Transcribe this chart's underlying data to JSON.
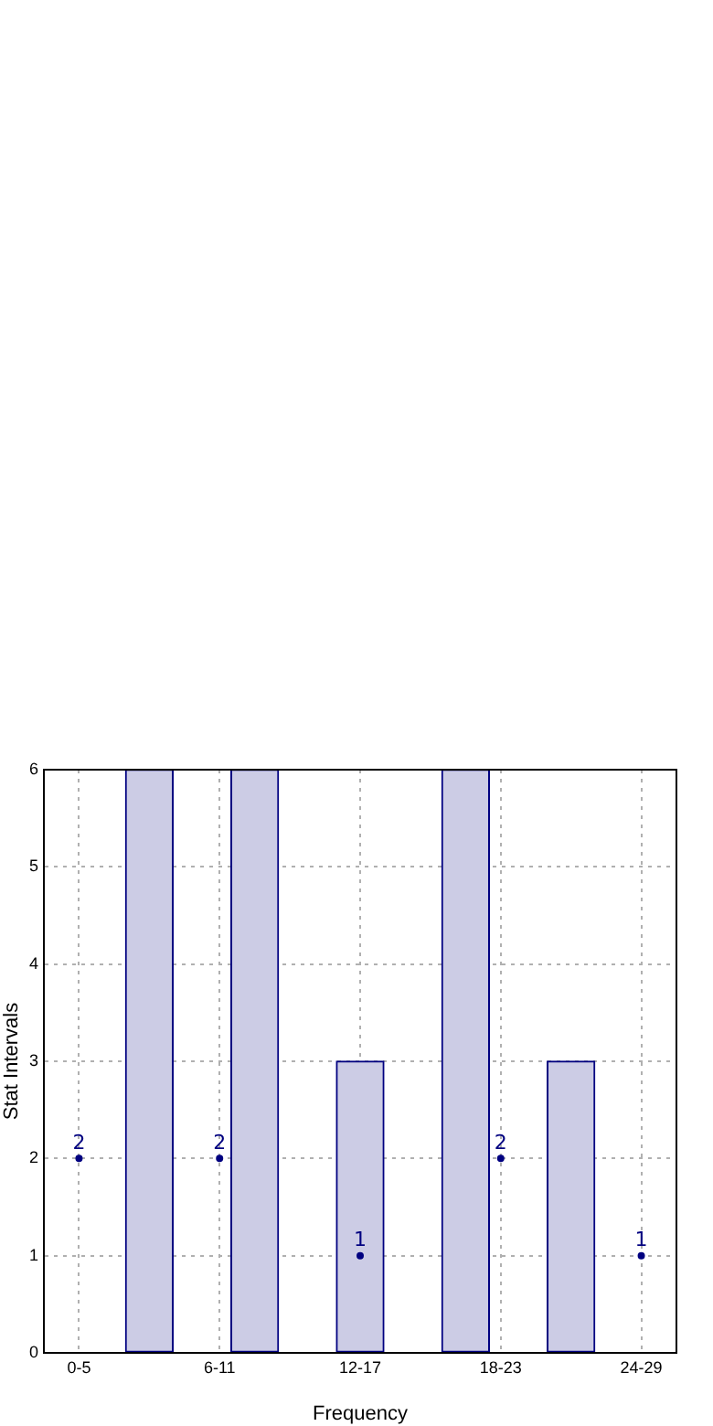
{
  "chart_data": {
    "type": "bar",
    "xlabel": "Frequency",
    "ylabel": "Stat Intervals",
    "categories": [
      null,
      "0-5",
      null,
      null,
      null,
      "6-11",
      null,
      null,
      null,
      "12-17",
      null,
      null,
      null,
      "18-23",
      null,
      null,
      null,
      "24-29",
      null
    ],
    "series": [
      {
        "color": "#ccccE5",
        "values": [
          null,
          null,
          null,
          6,
          null,
          null,
          6,
          null,
          null,
          3,
          null,
          null,
          6,
          null,
          null,
          3,
          null,
          null,
          null
        ]
      },
      {
        "type": "scatter",
        "marker": "circle",
        "color": "#000080",
        "values": [
          null,
          2,
          null,
          null,
          null,
          2,
          null,
          null,
          null,
          1,
          null,
          null,
          null,
          2,
          null,
          null,
          null,
          1,
          null
        ],
        "value_labels": [
          null,
          "2",
          null,
          null,
          null,
          "2",
          null,
          null,
          null,
          "1",
          null,
          null,
          null,
          "2",
          null,
          null,
          null,
          "1",
          null
        ]
      }
    ],
    "ylim": [
      0,
      6
    ],
    "yticks": [
      0,
      1,
      2,
      3,
      4,
      5,
      6
    ],
    "grid": true,
    "legend": false
  }
}
